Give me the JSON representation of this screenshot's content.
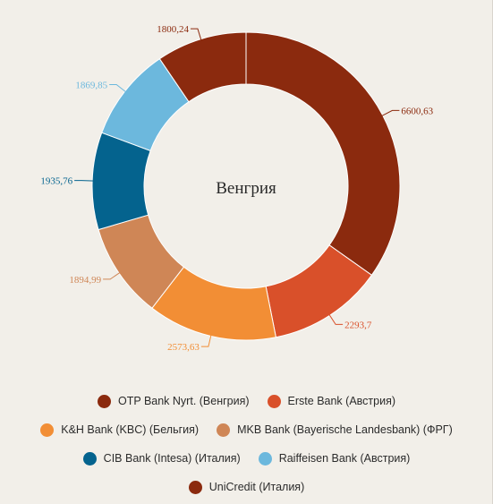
{
  "chart_data": {
    "type": "pie",
    "subtype": "donut",
    "title": "Венгрия",
    "legend_position": "bottom",
    "series": [
      {
        "name": "OTP Bank Nyrt. (Венгрия)",
        "value": 6600.63,
        "label": "6600,63",
        "color": "#8b2a0e"
      },
      {
        "name": "Erste Bank (Австрия)",
        "value": 2293.7,
        "label": "2293,7",
        "color": "#d9502a"
      },
      {
        "name": "K&H Bank (KBC) (Бельгия)",
        "value": 2573.63,
        "label": "2573,63",
        "color": "#f28e35"
      },
      {
        "name": "MKB Bank (Bayerische Landesbank) (ФРГ)",
        "value": 1894.99,
        "label": "1894,99",
        "color": "#cf8656"
      },
      {
        "name": "CIB Bank (Intesa) (Италия)",
        "value": 1935.76,
        "label": "1935,76",
        "color": "#04638e"
      },
      {
        "name": "Raiffeisen Bank (Австрия)",
        "value": 1869.85,
        "label": "1869,85",
        "color": "#6cb8dd"
      },
      {
        "name": "UniCredit (Италия)",
        "value": 1800.24,
        "label": "1800,24",
        "color": "#8b2a0e"
      }
    ]
  },
  "legend_rows": [
    [
      0,
      1
    ],
    [
      2,
      3
    ],
    [
      4,
      5
    ],
    [
      6
    ]
  ]
}
